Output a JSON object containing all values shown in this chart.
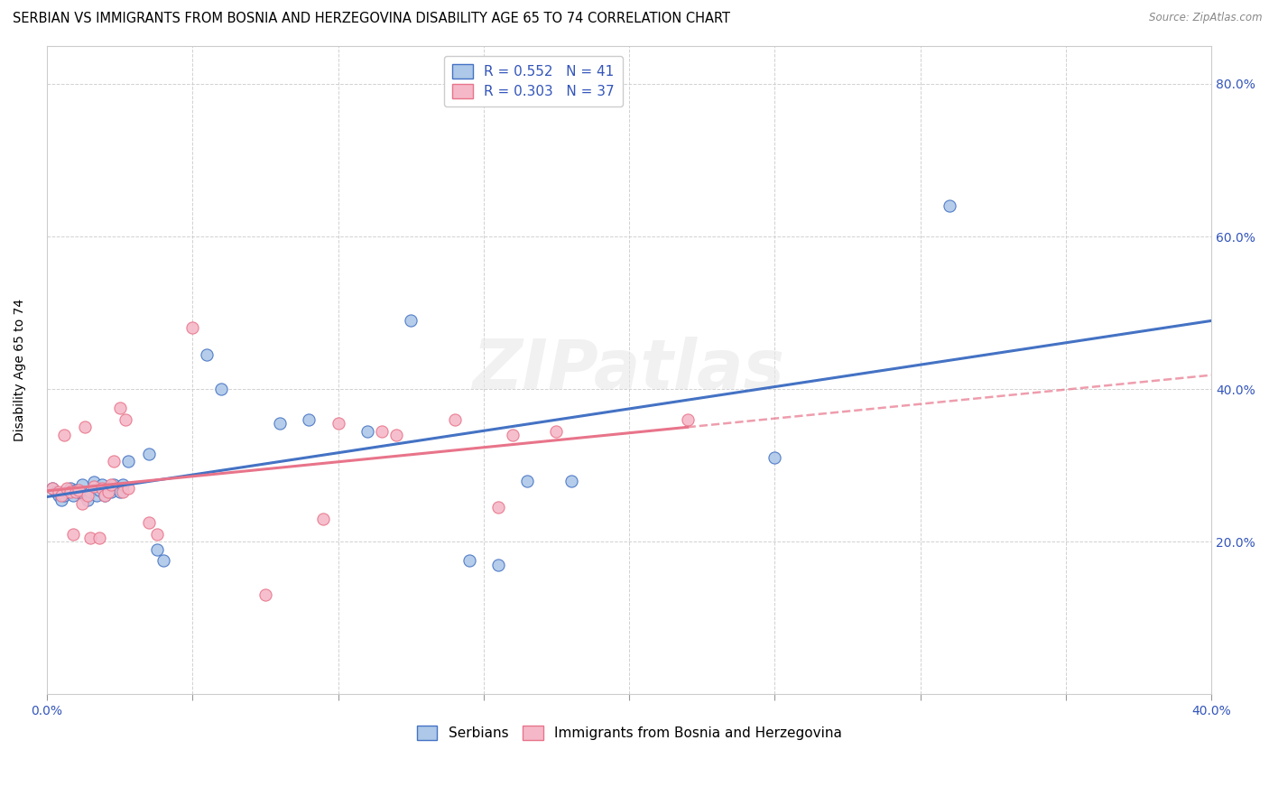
{
  "title": "SERBIAN VS IMMIGRANTS FROM BOSNIA AND HERZEGOVINA DISABILITY AGE 65 TO 74 CORRELATION CHART",
  "source": "Source: ZipAtlas.com",
  "ylabel_label": "Disability Age 65 to 74",
  "watermark": "ZIPatlas",
  "xlim": [
    0.0,
    0.4
  ],
  "ylim": [
    0.0,
    0.85
  ],
  "xticks": [
    0.0,
    0.05,
    0.1,
    0.15,
    0.2,
    0.25,
    0.3,
    0.35,
    0.4
  ],
  "yticks": [
    0.0,
    0.2,
    0.4,
    0.6,
    0.8
  ],
  "yticklabels": [
    "",
    "20.0%",
    "40.0%",
    "60.0%",
    "80.0%"
  ],
  "serbian_R": "0.552",
  "serbian_N": "41",
  "bosnian_R": "0.303",
  "bosnian_N": "37",
  "serbian_color": "#adc8e8",
  "bosnian_color": "#f5b8c8",
  "serbian_line_color": "#4472c4",
  "bosnian_line_color": "#e8748a",
  "legend_label_serbian": "Serbians",
  "legend_label_bosnian": "Immigrants from Bosnia and Herzegovina",
  "serbian_scatter_x": [
    0.002,
    0.003,
    0.004,
    0.005,
    0.006,
    0.007,
    0.008,
    0.009,
    0.01,
    0.011,
    0.012,
    0.013,
    0.014,
    0.015,
    0.016,
    0.017,
    0.018,
    0.019,
    0.02,
    0.021,
    0.022,
    0.023,
    0.024,
    0.025,
    0.026,
    0.028,
    0.035,
    0.038,
    0.04,
    0.055,
    0.06,
    0.08,
    0.09,
    0.11,
    0.125,
    0.145,
    0.155,
    0.165,
    0.18,
    0.31,
    0.25
  ],
  "serbian_scatter_y": [
    0.27,
    0.265,
    0.26,
    0.255,
    0.26,
    0.265,
    0.27,
    0.26,
    0.268,
    0.265,
    0.275,
    0.26,
    0.255,
    0.265,
    0.278,
    0.26,
    0.268,
    0.275,
    0.26,
    0.27,
    0.265,
    0.275,
    0.27,
    0.265,
    0.275,
    0.305,
    0.315,
    0.19,
    0.175,
    0.445,
    0.4,
    0.355,
    0.36,
    0.345,
    0.49,
    0.175,
    0.17,
    0.28,
    0.28,
    0.64,
    0.31
  ],
  "bosnian_scatter_x": [
    0.002,
    0.004,
    0.005,
    0.006,
    0.007,
    0.008,
    0.009,
    0.01,
    0.011,
    0.012,
    0.013,
    0.014,
    0.015,
    0.016,
    0.018,
    0.019,
    0.02,
    0.021,
    0.022,
    0.023,
    0.025,
    0.026,
    0.027,
    0.028,
    0.035,
    0.038,
    0.05,
    0.075,
    0.095,
    0.1,
    0.115,
    0.12,
    0.14,
    0.16,
    0.175,
    0.22,
    0.155
  ],
  "bosnian_scatter_y": [
    0.27,
    0.265,
    0.26,
    0.34,
    0.27,
    0.265,
    0.21,
    0.265,
    0.268,
    0.25,
    0.35,
    0.26,
    0.205,
    0.272,
    0.205,
    0.27,
    0.26,
    0.265,
    0.275,
    0.305,
    0.375,
    0.265,
    0.36,
    0.27,
    0.225,
    0.21,
    0.48,
    0.13,
    0.23,
    0.355,
    0.345,
    0.34,
    0.36,
    0.34,
    0.345,
    0.36,
    0.245
  ],
  "title_fontsize": 10.5,
  "axis_label_fontsize": 10,
  "tick_fontsize": 10,
  "legend_fontsize": 11
}
